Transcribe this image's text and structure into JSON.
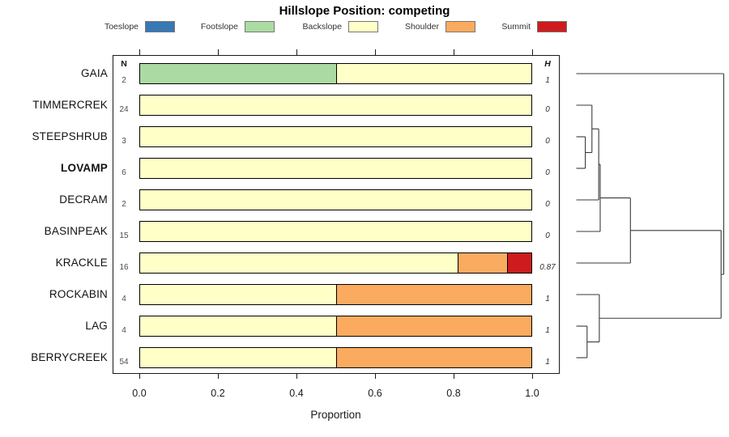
{
  "chart_data": {
    "type": "bar",
    "variant": "horizontal-stacked-proportion",
    "title": "Hillslope Position: competing",
    "xlabel": "Proportion",
    "xlim": [
      0,
      1
    ],
    "x_ticks": [
      {
        "value": 0.0,
        "label": "0.0"
      },
      {
        "value": 0.2,
        "label": "0.2"
      },
      {
        "value": 0.4,
        "label": "0.4"
      },
      {
        "value": 0.6,
        "label": "0.6"
      },
      {
        "value": 0.8,
        "label": "0.8"
      },
      {
        "value": 1.0,
        "label": "1.0"
      }
    ],
    "grid": false,
    "legend_position": "top",
    "legend": [
      {
        "label": "Toeslope",
        "color": "#3778B5"
      },
      {
        "label": "Footslope",
        "color": "#ABDBA3"
      },
      {
        "label": "Backslope",
        "color": "#FFFFC8"
      },
      {
        "label": "Shoulder",
        "color": "#FBAB60"
      },
      {
        "label": "Summit",
        "color": "#CE1B1D"
      }
    ],
    "columns": {
      "n_header": "N",
      "h_header": "H"
    },
    "rows": [
      {
        "label": "GAIA",
        "bold": false,
        "n": "2",
        "h": "1",
        "segments": [
          {
            "category": "Footslope",
            "value": 0.5
          },
          {
            "category": "Backslope",
            "value": 0.5
          }
        ]
      },
      {
        "label": "TIMMERCREK",
        "bold": false,
        "n": "24",
        "h": "0",
        "segments": [
          {
            "category": "Backslope",
            "value": 1.0
          }
        ]
      },
      {
        "label": "STEEPSHRUB",
        "bold": false,
        "n": "3",
        "h": "0",
        "segments": [
          {
            "category": "Backslope",
            "value": 1.0
          }
        ]
      },
      {
        "label": "LOVAMP",
        "bold": true,
        "n": "6",
        "h": "0",
        "segments": [
          {
            "category": "Backslope",
            "value": 1.0
          }
        ]
      },
      {
        "label": "DECRAM",
        "bold": false,
        "n": "2",
        "h": "0",
        "segments": [
          {
            "category": "Backslope",
            "value": 1.0
          }
        ]
      },
      {
        "label": "BASINPEAK",
        "bold": false,
        "n": "15",
        "h": "0",
        "segments": [
          {
            "category": "Backslope",
            "value": 1.0
          }
        ]
      },
      {
        "label": "KRACKLE",
        "bold": false,
        "n": "16",
        "h": "0.87",
        "segments": [
          {
            "category": "Backslope",
            "value": 0.8125
          },
          {
            "category": "Shoulder",
            "value": 0.125
          },
          {
            "category": "Summit",
            "value": 0.0625
          }
        ]
      },
      {
        "label": "ROCKABIN",
        "bold": false,
        "n": "4",
        "h": "1",
        "segments": [
          {
            "category": "Backslope",
            "value": 0.5
          },
          {
            "category": "Shoulder",
            "value": 0.5
          }
        ]
      },
      {
        "label": "LAG",
        "bold": false,
        "n": "4",
        "h": "1",
        "segments": [
          {
            "category": "Backslope",
            "value": 0.5
          },
          {
            "category": "Shoulder",
            "value": 0.5
          }
        ]
      },
      {
        "label": "BERRYCREEK",
        "bold": false,
        "n": "54",
        "h": "1",
        "segments": [
          {
            "category": "Backslope",
            "value": 0.5
          },
          {
            "category": "Shoulder",
            "value": 0.5
          }
        ]
      }
    ],
    "dendrogram": {
      "orientation": "right",
      "line_color": "#3a3a3a",
      "merges": [
        {
          "id": "m1",
          "a": "STEEPSHRUB",
          "b": "LOVAMP",
          "height": 0.061
        },
        {
          "id": "m2",
          "a": "TIMMERCREK",
          "b": "m1",
          "height": 0.106
        },
        {
          "id": "m3",
          "a": "m2",
          "b": "DECRAM",
          "height": 0.152
        },
        {
          "id": "m4",
          "a": "m3",
          "b": "BASINPEAK",
          "height": 0.162
        },
        {
          "id": "m5",
          "a": "m4",
          "b": "KRACKLE",
          "height": 0.367
        },
        {
          "id": "m6",
          "a": "LAG",
          "b": "BERRYCREEK",
          "height": 0.073
        },
        {
          "id": "m7",
          "a": "ROCKABIN",
          "b": "m6",
          "height": 0.156
        },
        {
          "id": "m8",
          "a": "m5",
          "b": "m7",
          "height": 0.982
        },
        {
          "id": "root",
          "a": "GAIA",
          "b": "m8",
          "height": 1.0
        }
      ]
    }
  }
}
